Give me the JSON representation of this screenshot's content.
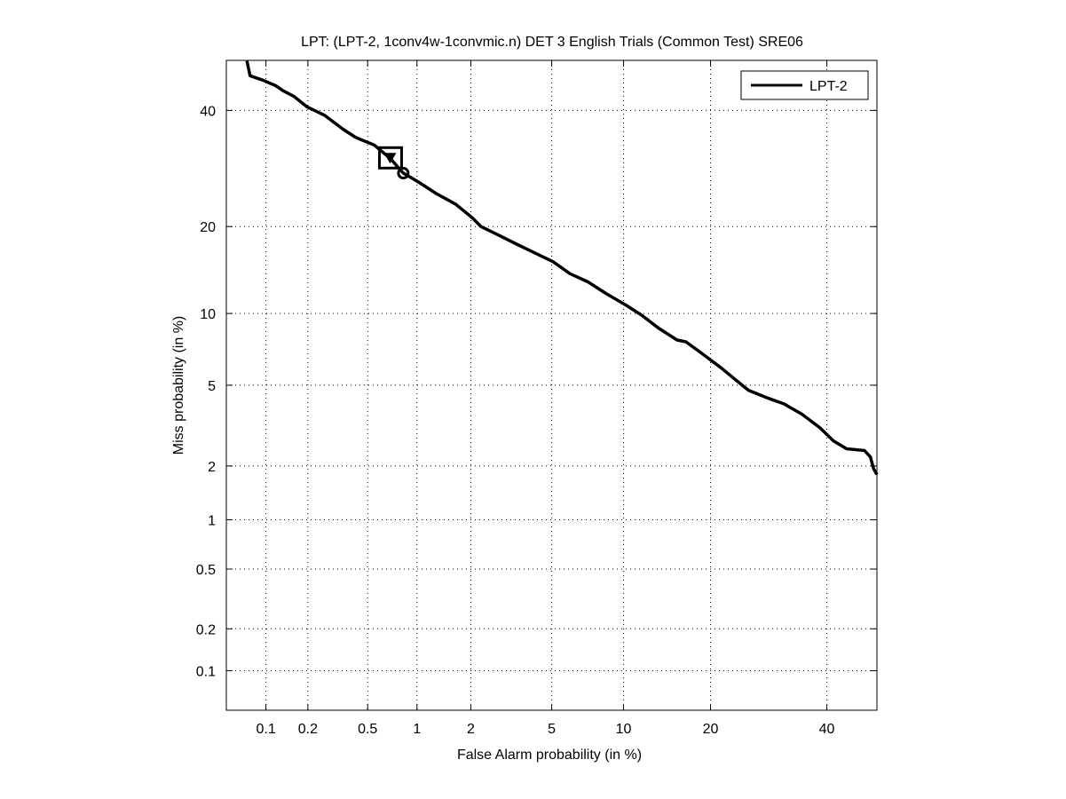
{
  "chart_data": {
    "type": "line",
    "title": "LPT: (LPT-2, 1conv4w-1convmic.n) DET 3 English Trials (Common Test) SRE06",
    "xlabel": "False Alarm probability (in %)",
    "ylabel": "Miss probability (in %)",
    "xscale": "probit",
    "yscale": "probit",
    "xlim": [
      0.05,
      50
    ],
    "ylim": [
      0.05,
      50
    ],
    "grid": true,
    "xticks": [
      0.1,
      0.2,
      0.5,
      1,
      2,
      5,
      10,
      20,
      40
    ],
    "xtick_labels": [
      "0.1",
      "0.2",
      "0.5",
      "1",
      "2",
      "5",
      "10",
      "20",
      "40"
    ],
    "yticks": [
      0.1,
      0.2,
      0.5,
      1,
      2,
      5,
      10,
      20,
      40
    ],
    "ytick_labels": [
      "0.1",
      "0.2",
      "0.5",
      "1",
      "2",
      "5",
      "10",
      "20",
      "40"
    ],
    "legend": {
      "placement": "top-right",
      "entries": [
        "LPT-2"
      ]
    },
    "series": [
      {
        "name": "LPT-2",
        "color": "#000000",
        "points": [
          [
            0.072,
            49.9
          ],
          [
            0.076,
            46.9
          ],
          [
            0.095,
            46.0
          ],
          [
            0.118,
            44.9
          ],
          [
            0.133,
            43.9
          ],
          [
            0.159,
            42.8
          ],
          [
            0.197,
            40.7
          ],
          [
            0.262,
            39.0
          ],
          [
            0.345,
            36.4
          ],
          [
            0.42,
            34.8
          ],
          [
            0.55,
            33.4
          ],
          [
            0.69,
            31.0
          ],
          [
            0.83,
            28.4
          ],
          [
            1.02,
            26.9
          ],
          [
            1.29,
            25.0
          ],
          [
            1.66,
            23.3
          ],
          [
            2.03,
            21.3
          ],
          [
            2.26,
            20.0
          ],
          [
            2.79,
            18.8
          ],
          [
            3.42,
            17.6
          ],
          [
            4.16,
            16.5
          ],
          [
            5.07,
            15.4
          ],
          [
            6.03,
            14.0
          ],
          [
            7.19,
            13.1
          ],
          [
            8.52,
            11.9
          ],
          [
            10.3,
            10.7
          ],
          [
            11.7,
            9.85
          ],
          [
            13.5,
            8.74
          ],
          [
            15.6,
            7.84
          ],
          [
            16.7,
            7.71
          ],
          [
            19.1,
            6.78
          ],
          [
            21.6,
            5.95
          ],
          [
            23.7,
            5.3
          ],
          [
            25.8,
            4.74
          ],
          [
            28.8,
            4.39
          ],
          [
            31.9,
            4.1
          ],
          [
            35.2,
            3.66
          ],
          [
            38.6,
            3.15
          ],
          [
            41.3,
            2.7
          ],
          [
            43.9,
            2.46
          ],
          [
            47.5,
            2.41
          ],
          [
            48.7,
            2.23
          ],
          [
            49.3,
            1.94
          ],
          [
            50.0,
            1.8
          ]
        ]
      }
    ],
    "markers": [
      {
        "name": "square-marker",
        "shape": "square",
        "point": [
          0.69,
          31.0
        ]
      },
      {
        "name": "triangle-marker",
        "shape": "triangle-down",
        "point": [
          0.69,
          31.0
        ]
      },
      {
        "name": "circle-marker",
        "shape": "circle",
        "point": [
          0.83,
          28.4
        ]
      }
    ]
  }
}
